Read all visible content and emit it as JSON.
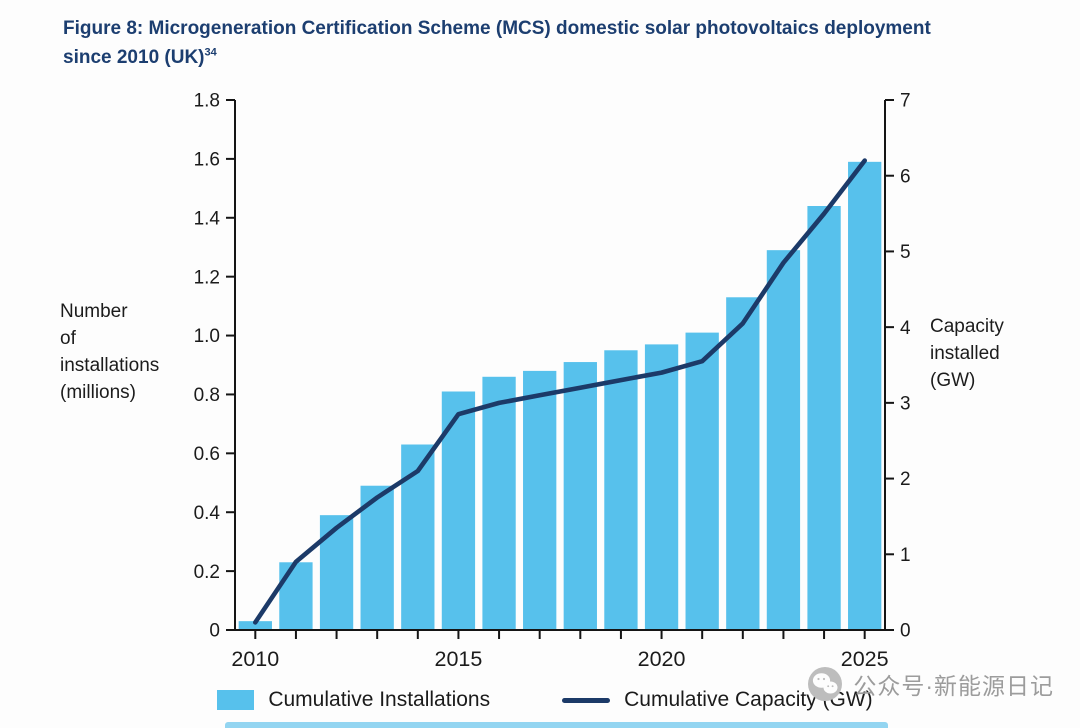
{
  "figure": {
    "title_line1": "Figure 8: Microgeneration Certification Scheme (MCS) domestic solar photovoltaics deployment",
    "title_line2": "since 2010 (UK)",
    "title_superscript": "34"
  },
  "axis_labels": {
    "left_lines": [
      "Number",
      "of",
      "installations",
      "(millions)"
    ],
    "right_lines": [
      "Capacity",
      "installed",
      "(GW)"
    ]
  },
  "legend": {
    "installations_label": "Cumulative Installations",
    "capacity_label": "Cumulative Capacity (GW)"
  },
  "watermark": {
    "icon": "wechat-icon",
    "text": "公众号·新能源日记"
  },
  "colors": {
    "title": "#1c3e70",
    "bar": "#57c1ec",
    "line": "#1c3a68",
    "axis": "#151515",
    "tick_text": "#1b1b1b",
    "watermark": "#9c9c9c"
  },
  "chart_data": {
    "type": "bar",
    "subtype": "bar+line combo, dual y-axes",
    "x": [
      2010,
      2011,
      2012,
      2013,
      2014,
      2015,
      2016,
      2017,
      2018,
      2019,
      2020,
      2021,
      2022,
      2023,
      2024,
      2025
    ],
    "series": [
      {
        "name": "Cumulative Installations",
        "type": "bar",
        "axis": "left",
        "values": [
          0.03,
          0.23,
          0.39,
          0.49,
          0.63,
          0.81,
          0.86,
          0.88,
          0.91,
          0.95,
          0.97,
          1.01,
          1.13,
          1.29,
          1.44,
          1.59
        ]
      },
      {
        "name": "Cumulative Capacity (GW)",
        "type": "line",
        "axis": "right",
        "values": [
          0.1,
          0.9,
          1.35,
          1.75,
          2.1,
          2.85,
          3.0,
          3.1,
          3.2,
          3.3,
          3.4,
          3.55,
          4.05,
          4.85,
          5.5,
          6.2
        ]
      }
    ],
    "left_axis": {
      "label": "Number of installations (millions)",
      "min": 0,
      "max": 1.8,
      "tick_values": [
        0,
        0.2,
        0.4,
        0.6,
        0.8,
        1.0,
        1.2,
        1.4,
        1.6,
        1.8
      ],
      "tick_labels": [
        "0",
        "0.2",
        "0.4",
        "0.6",
        "0.8",
        "1.0",
        "1.2",
        "1.4",
        "1.6",
        "1.8"
      ]
    },
    "right_axis": {
      "label": "Capacity installed (GW)",
      "min": 0,
      "max": 7,
      "tick_values": [
        0,
        1,
        2,
        3,
        4,
        5,
        6,
        7
      ],
      "tick_labels": [
        "0",
        "1",
        "2",
        "3",
        "4",
        "5",
        "6",
        "7"
      ]
    },
    "x_tick_labels": [
      2010,
      2015,
      2020,
      2025
    ],
    "grid": false,
    "legend_position": "bottom"
  }
}
